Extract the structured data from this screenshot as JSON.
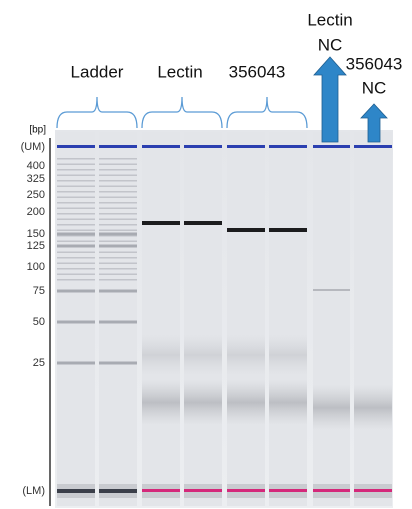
{
  "lane_labels": [
    "Ladder",
    "Lectin",
    "356043"
  ],
  "nc_labels": [
    {
      "lines": [
        "Lectin",
        "NC"
      ]
    },
    {
      "lines": [
        "356043",
        "NC"
      ]
    }
  ],
  "axis": {
    "unit": "[bp]",
    "markers": [
      "(UM)",
      400,
      325,
      250,
      200,
      150,
      125,
      100,
      75,
      50,
      25,
      "(LM)"
    ]
  }
}
